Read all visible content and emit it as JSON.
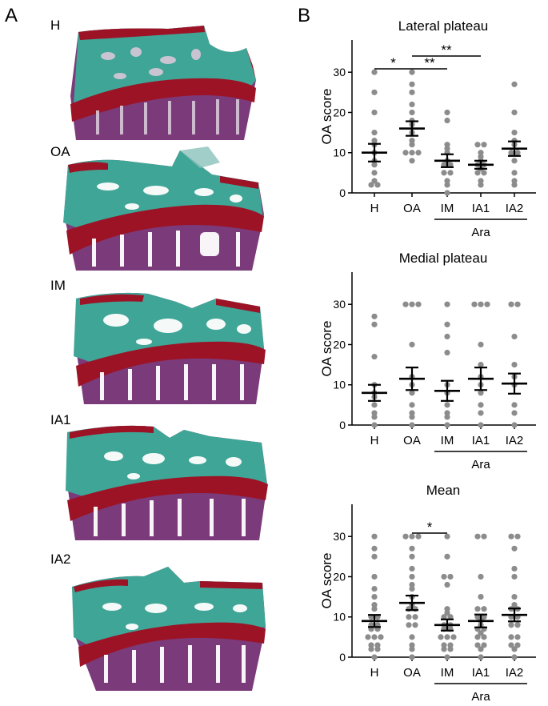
{
  "panel_a": {
    "letter": "A",
    "images": [
      {
        "label": "H"
      },
      {
        "label": "OA"
      },
      {
        "label": "IM"
      },
      {
        "label": "IA1"
      },
      {
        "label": "IA2"
      }
    ],
    "colors": {
      "cartilage": "#9c1326",
      "green": "#3fa596",
      "bone": "#7b3a7a"
    }
  },
  "panel_b": {
    "letter": "B",
    "group_label": "Ara"
  },
  "chart_data": [
    {
      "type": "scatter",
      "title": "Lateral plateau",
      "ylabel": "OA score",
      "categories": [
        "H",
        "OA",
        "IM",
        "IA1",
        "IA2"
      ],
      "ylim": [
        0,
        38
      ],
      "yticks": [
        0,
        10,
        20,
        30
      ],
      "group_bracket": {
        "label": "Ara",
        "from": "IM",
        "to": "IA2"
      },
      "means": [
        10,
        16,
        8,
        7,
        11
      ],
      "sem": [
        2.2,
        1.8,
        1.6,
        1.0,
        1.8
      ],
      "points": [
        [
          30,
          25,
          20,
          15,
          13,
          12,
          10,
          8,
          7,
          5,
          3,
          2,
          2
        ],
        [
          30,
          27,
          25,
          22,
          20,
          18,
          17,
          15,
          13,
          12,
          10,
          10,
          10,
          8
        ],
        [
          20,
          18,
          12,
          11,
          10,
          8,
          7,
          7,
          5,
          5,
          3,
          2,
          0
        ],
        [
          12,
          12,
          10,
          9,
          8,
          7,
          7,
          6,
          5,
          5,
          3,
          2
        ],
        [
          27,
          20,
          15,
          13,
          12,
          10,
          10,
          8,
          5,
          3,
          2
        ]
      ],
      "significance": [
        {
          "from": "H",
          "to": "OA",
          "label": "*",
          "level": 1
        },
        {
          "from": "OA",
          "to": "IM",
          "label": "**",
          "level": 1
        },
        {
          "from": "OA",
          "to": "IA1",
          "label": "**",
          "level": 2
        }
      ]
    },
    {
      "type": "scatter",
      "title": "Medial plateau",
      "ylabel": "OA score",
      "categories": [
        "H",
        "OA",
        "IM",
        "IA1",
        "IA2"
      ],
      "ylim": [
        0,
        38
      ],
      "yticks": [
        0,
        10,
        20,
        30
      ],
      "group_bracket": {
        "label": "Ara",
        "from": "IM",
        "to": "IA2"
      },
      "means": [
        8,
        11.5,
        8.5,
        11.5,
        10.3
      ],
      "sem": [
        2.0,
        2.8,
        2.5,
        2.8,
        2.5
      ],
      "points": [
        [
          27,
          25,
          17,
          10,
          8,
          7,
          5,
          3,
          2,
          0
        ],
        [
          30,
          30,
          30,
          20,
          12,
          10,
          8,
          5,
          3,
          2,
          0
        ],
        [
          30,
          25,
          22,
          18,
          10,
          8,
          5,
          3,
          2,
          0
        ],
        [
          30,
          30,
          30,
          20,
          15,
          12,
          10,
          8,
          5,
          3,
          0
        ],
        [
          30,
          30,
          22,
          15,
          12,
          10,
          5,
          3,
          0
        ]
      ],
      "significance": []
    },
    {
      "type": "scatter",
      "title": "Mean",
      "ylabel": "OA score",
      "categories": [
        "H",
        "OA",
        "IM",
        "IA1",
        "IA2"
      ],
      "ylim": [
        0,
        38
      ],
      "yticks": [
        0,
        10,
        20,
        30
      ],
      "group_bracket": {
        "label": "Ara",
        "from": "IM",
        "to": "IA2"
      },
      "means": [
        9,
        13.5,
        8,
        9,
        10.5
      ],
      "sem": [
        1.5,
        1.8,
        1.4,
        1.6,
        1.6
      ],
      "points": [
        [
          30,
          27,
          25,
          20,
          17,
          15,
          13,
          12,
          10,
          10,
          8,
          8,
          7,
          7,
          5,
          5,
          5,
          3,
          3,
          2,
          2,
          0
        ],
        [
          30,
          30,
          30,
          27,
          25,
          22,
          20,
          18,
          17,
          15,
          13,
          12,
          12,
          10,
          10,
          8,
          8,
          5,
          3,
          2,
          0
        ],
        [
          30,
          25,
          20,
          20,
          18,
          12,
          11,
          10,
          10,
          8,
          8,
          7,
          7,
          5,
          5,
          5,
          3,
          3,
          2,
          2,
          0
        ],
        [
          30,
          30,
          20,
          15,
          12,
          12,
          10,
          10,
          9,
          8,
          7,
          7,
          6,
          5,
          5,
          3,
          3,
          2,
          0
        ],
        [
          30,
          30,
          27,
          22,
          20,
          15,
          13,
          12,
          12,
          10,
          10,
          8,
          8,
          5,
          5,
          3,
          3,
          2,
          0
        ]
      ],
      "significance": [
        {
          "from": "OA",
          "to": "IM",
          "label": "*",
          "level": 1
        }
      ]
    }
  ]
}
